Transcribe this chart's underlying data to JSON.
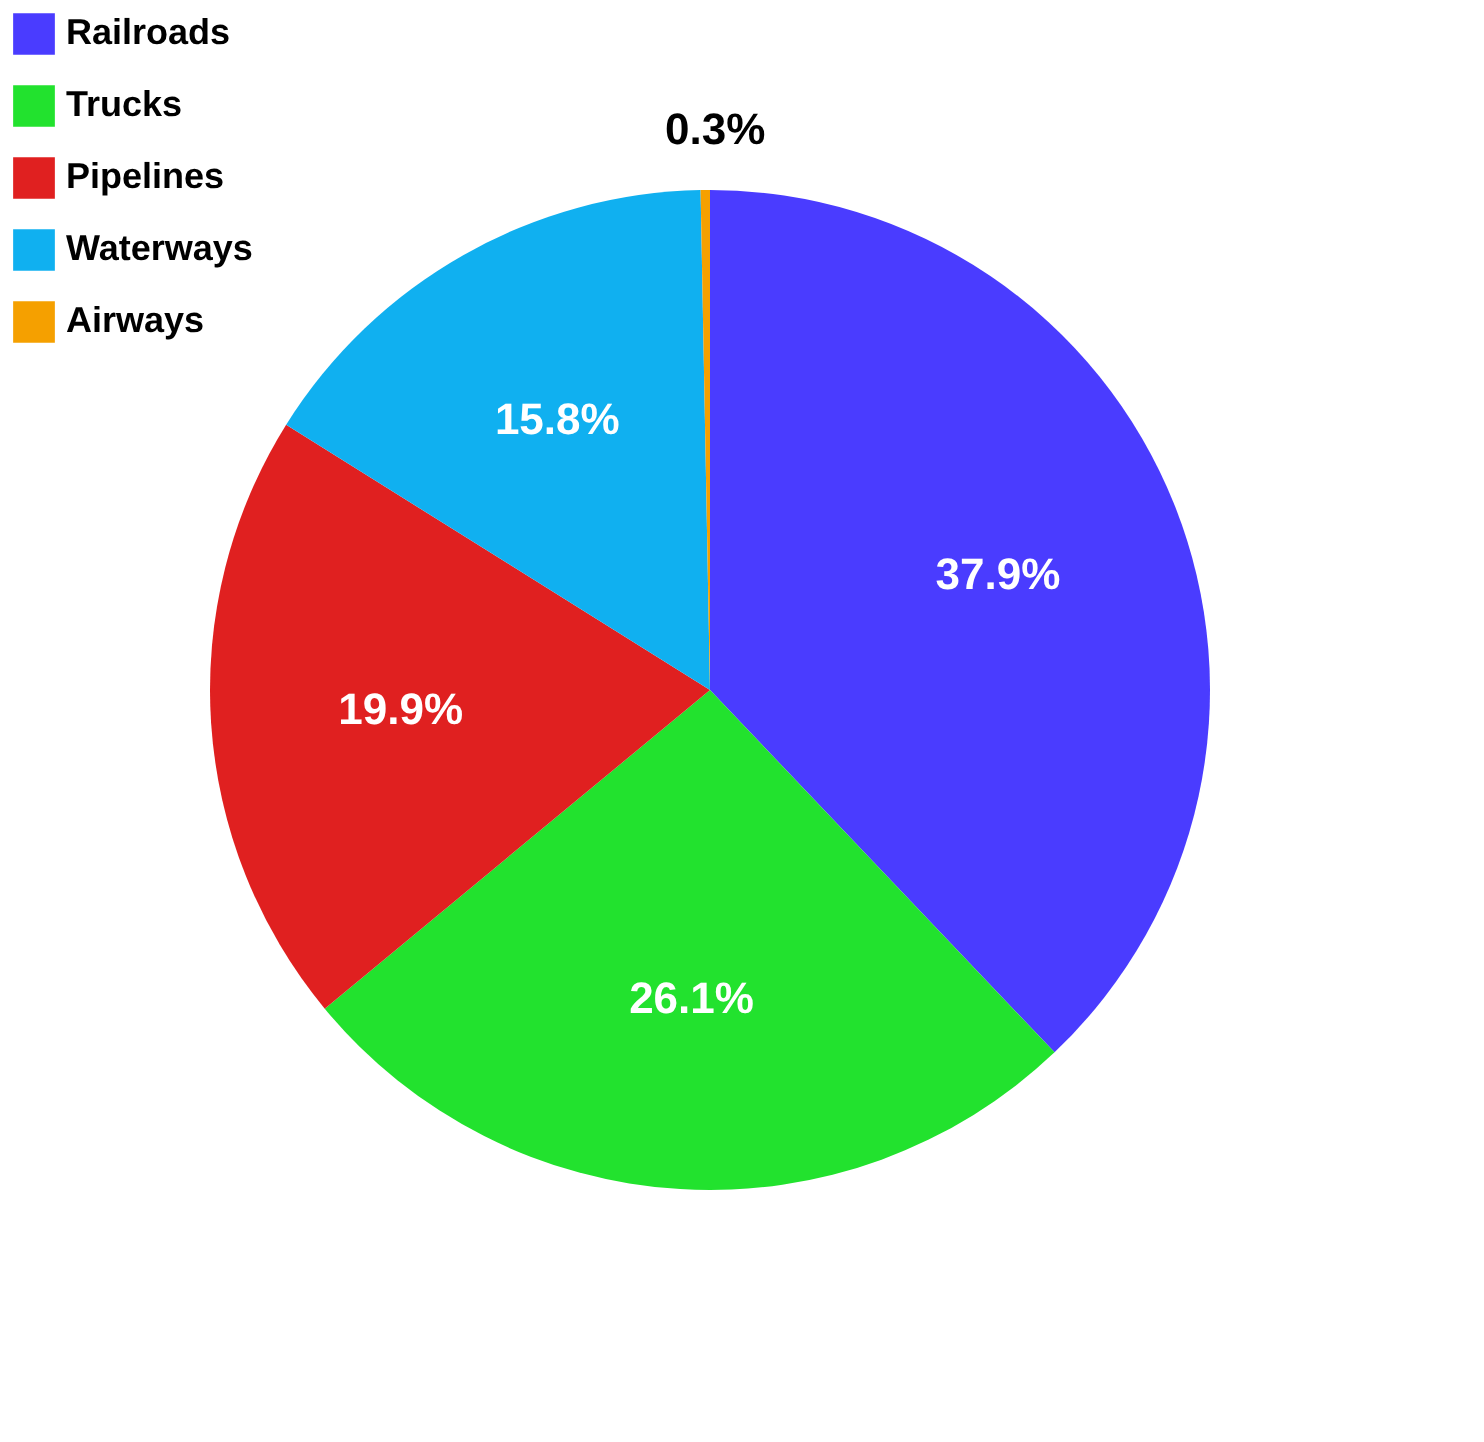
{
  "chart_data": {
    "type": "pie",
    "categories": [
      "Railroads",
      "Trucks",
      "Pipelines",
      "Waterways",
      "Airways"
    ],
    "values": [
      37.9,
      26.1,
      19.9,
      15.8,
      0.3
    ],
    "colors": [
      "#4a3cff",
      "#22e22e",
      "#e02020",
      "#10b0f0",
      "#f5a000"
    ],
    "value_labels": [
      "37.9%",
      "26.1%",
      "19.9%",
      "15.8%",
      "0.3%"
    ],
    "legend": "top left"
  }
}
